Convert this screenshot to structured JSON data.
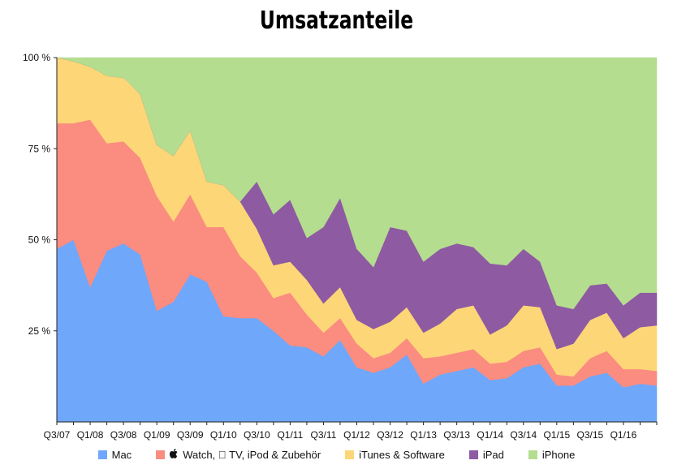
{
  "chart_data": {
    "type": "area",
    "stacked": true,
    "normalized": true,
    "title": "Umsatzanteile",
    "ylim": [
      0,
      100
    ],
    "yticks": [
      {
        "value": 100,
        "label": "100 %"
      },
      {
        "value": 75,
        "label": "75 %"
      },
      {
        "value": 50,
        "label": "50 %"
      },
      {
        "value": 25,
        "label": "25 %"
      }
    ],
    "categories": [
      "Q3/07",
      "Q4/07",
      "Q1/08",
      "Q2/08",
      "Q3/08",
      "Q4/08",
      "Q1/09",
      "Q2/09",
      "Q3/09",
      "Q4/09",
      "Q1/10",
      "Q2/10",
      "Q3/10",
      "Q4/10",
      "Q1/11",
      "Q2/11",
      "Q3/11",
      "Q4/11",
      "Q1/12",
      "Q2/12",
      "Q3/12",
      "Q4/12",
      "Q1/13",
      "Q2/13",
      "Q3/13",
      "Q4/13",
      "Q1/14",
      "Q2/14",
      "Q3/14",
      "Q4/14",
      "Q1/15",
      "Q2/15",
      "Q3/15",
      "Q4/15",
      "Q1/16",
      "Q2/16",
      "Q3/16"
    ],
    "xtick_labels": [
      "Q3/07",
      "Q1/08",
      "Q3/08",
      "Q1/09",
      "Q3/09",
      "Q1/10",
      "Q3/10",
      "Q1/11",
      "Q3/11",
      "Q1/12",
      "Q3/12",
      "Q1/13",
      "Q3/13",
      "Q1/14",
      "Q3/14",
      "Q1/15",
      "Q3/15",
      "Q1/16"
    ],
    "series": [
      {
        "name": "Mac",
        "color": "#6fa7fa",
        "values": [
          47.5,
          50,
          37,
          47,
          49,
          46,
          30.5,
          33,
          40.5,
          38.5,
          29,
          28.5,
          28.5,
          25,
          21,
          20.5,
          18,
          22.5,
          15,
          13.5,
          15,
          18.5,
          10.5,
          13,
          14,
          15,
          11.5,
          12,
          15,
          16,
          10,
          10,
          12.5,
          13.5,
          9.5,
          10.5,
          10
        ],
        "cumulative": [
          47.5,
          50,
          37,
          47,
          49,
          46,
          30.5,
          33,
          40.5,
          38.5,
          29,
          28.5,
          28.5,
          25,
          21,
          20.5,
          18,
          22.5,
          15,
          13.5,
          15,
          18.5,
          10.5,
          13,
          14,
          15,
          11.5,
          12,
          15,
          16,
          10,
          10,
          12.5,
          13.5,
          9.5,
          10.5,
          10
        ]
      },
      {
        "name": "Watch, TV, iPod & Zubehör",
        "color": "#fa8c80",
        "values": [
          34.5,
          32,
          46,
          29.5,
          28,
          26.5,
          31.5,
          22,
          22,
          15,
          24.5,
          17,
          12.5,
          9,
          14.5,
          9,
          6.5,
          6,
          6.5,
          4,
          4,
          4.5,
          7,
          5,
          5,
          5,
          4.5,
          4.5,
          4.5,
          4.5,
          3,
          2.5,
          5,
          6,
          5,
          4,
          4
        ],
        "cumulative": [
          82,
          82,
          83,
          76.5,
          77,
          72.5,
          62,
          55,
          62.5,
          53.5,
          53.5,
          45.5,
          41,
          34,
          35.5,
          29.5,
          24.5,
          28.5,
          21.5,
          17.5,
          19,
          23,
          17.5,
          18,
          19,
          20,
          16,
          16.5,
          19.5,
          20.5,
          13,
          12.5,
          17.5,
          19.5,
          14.5,
          14.5,
          14
        ]
      },
      {
        "name": "iTunes & Software",
        "color": "#fdd677",
        "values": [
          18,
          17,
          14.5,
          18.5,
          17.5,
          17.5,
          14,
          18,
          17.5,
          12.5,
          11.5,
          15,
          12,
          9,
          8.5,
          9.5,
          8,
          8.5,
          6.5,
          8,
          8.5,
          8.5,
          7,
          9,
          12,
          12,
          8,
          10,
          12.5,
          11,
          7,
          9,
          10.5,
          10.5,
          8.5,
          11.5,
          12.5
        ],
        "cumulative": [
          100,
          99,
          97.5,
          95,
          94.5,
          90,
          76,
          73,
          80,
          66,
          65,
          60.5,
          53,
          43,
          44,
          39,
          32.5,
          37,
          28,
          25.5,
          27.5,
          31.5,
          24.5,
          27,
          31,
          32,
          24,
          26.5,
          32,
          31.5,
          20,
          21.5,
          28,
          30,
          23,
          26,
          26.5
        ]
      },
      {
        "name": "iPad",
        "color": "#8e5aa2",
        "values": [
          0,
          0,
          0,
          0,
          0,
          0,
          0,
          0,
          0,
          0,
          0,
          0,
          13,
          14,
          17,
          11.5,
          21,
          24.5,
          19.5,
          17,
          26,
          21,
          19.5,
          20.5,
          18,
          16,
          19.5,
          16.5,
          15.5,
          12.5,
          12,
          9.5,
          9.5,
          8,
          9,
          9.5,
          9
        ],
        "cumulative": [
          100,
          99,
          97.5,
          95,
          94.5,
          90,
          76,
          73,
          80,
          66,
          65,
          60.5,
          66,
          57,
          61,
          50.5,
          53.5,
          61.5,
          47.5,
          42.5,
          53.5,
          52.5,
          44,
          47.5,
          49,
          48,
          43.5,
          43,
          47.5,
          44,
          32,
          31,
          37.5,
          38,
          32,
          35.5,
          35.5
        ]
      },
      {
        "name": "iPhone",
        "color": "#b4dd90",
        "values": [
          0,
          1,
          2.5,
          5,
          5.5,
          10,
          24,
          27,
          20,
          34,
          35,
          39.5,
          34,
          43,
          39,
          49.5,
          46.5,
          38.5,
          52.5,
          57.5,
          46.5,
          47.5,
          56,
          52.5,
          51,
          52,
          56.5,
          57,
          52.5,
          56,
          68,
          69,
          62.5,
          62,
          68,
          64.5,
          64.5
        ],
        "cumulative": [
          100,
          100,
          100,
          100,
          100,
          100,
          100,
          100,
          100,
          100,
          100,
          100,
          100,
          100,
          100,
          100,
          100,
          100,
          100,
          100,
          100,
          100,
          100,
          100,
          100,
          100,
          100,
          100,
          100,
          100,
          100,
          100,
          100,
          100,
          100,
          100,
          100
        ]
      }
    ]
  },
  "legend": {
    "items": [
      {
        "label": "Mac",
        "color": "#6fa7fa",
        "apple_prefix": false
      },
      {
        "label": "Watch,  TV, iPod & Zubehör",
        "color": "#fa8c80",
        "apple_prefix": true
      },
      {
        "label": "iTunes & Software",
        "color": "#fdd677",
        "apple_prefix": false
      },
      {
        "label": "iPad",
        "color": "#8e5aa2",
        "apple_prefix": false
      },
      {
        "label": "iPhone",
        "color": "#b4dd90",
        "apple_prefix": false
      }
    ]
  }
}
